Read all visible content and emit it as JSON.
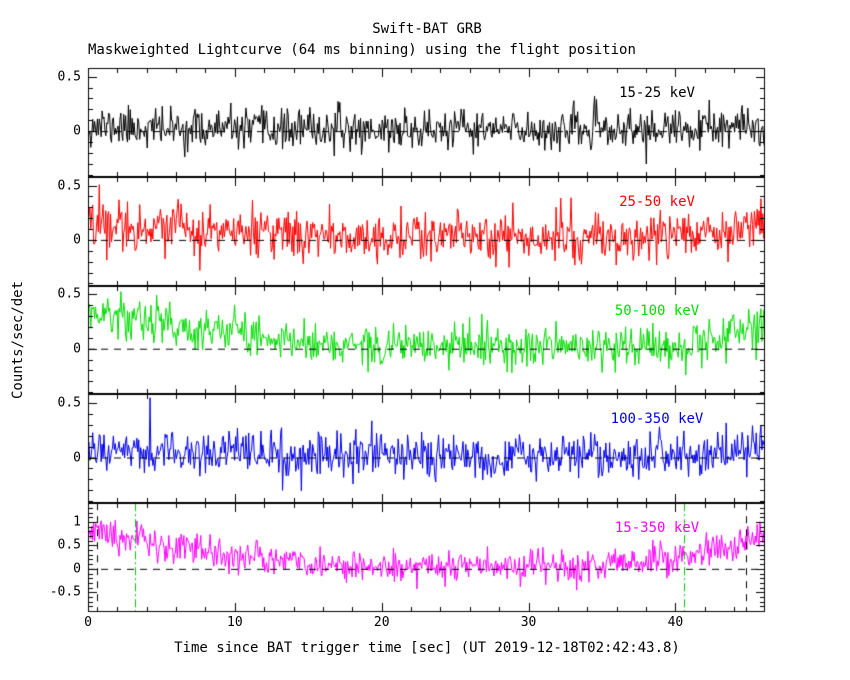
{
  "chart_data": {
    "type": "line",
    "title": "Swift-BAT GRB",
    "subtitle": "Maskweighted Lightcurve (64 ms binning) using the flight position",
    "xlabel": "Time since BAT trigger time [sec] (UT 2019-12-18T02:42:43.8)",
    "ylabel": "Counts/sec/det",
    "x_axis": {
      "min": 0,
      "max": 46.1,
      "major_ticks": [
        0,
        10,
        20,
        30,
        40
      ],
      "minor_step": 2,
      "bin_seconds": 0.064
    },
    "grid": false,
    "legend_position": "in-panel-right",
    "panels": [
      {
        "band": "15-25 keV",
        "color": "#000000",
        "ylim": [
          -0.42,
          0.58
        ],
        "labeled_ticks": [
          0,
          0.5
        ],
        "minor_step": 0.1,
        "noise_sigma": 0.09,
        "seed": 11,
        "trend": [
          [
            0,
            0.05
          ],
          [
            6,
            0.02
          ],
          [
            20,
            0.01
          ],
          [
            40,
            0.01
          ],
          [
            46.1,
            0.03
          ]
        ],
        "zero_line_dashed": true
      },
      {
        "band": "25-50 keV",
        "color": "#ff0000",
        "ylim": [
          -0.42,
          0.58
        ],
        "labeled_ticks": [
          0,
          0.5
        ],
        "minor_step": 0.1,
        "noise_sigma": 0.11,
        "seed": 22,
        "trend": [
          [
            0,
            0.17
          ],
          [
            3,
            0.14
          ],
          [
            10,
            0.06
          ],
          [
            18,
            0.03
          ],
          [
            38,
            0.02
          ],
          [
            43,
            0.1
          ],
          [
            46.1,
            0.17
          ]
        ],
        "zero_line_dashed": true
      },
      {
        "band": "50-100 keV",
        "color": "#00dd00",
        "ylim": [
          -0.42,
          0.58
        ],
        "labeled_ticks": [
          0,
          0.5
        ],
        "minor_step": 0.1,
        "noise_sigma": 0.095,
        "seed": 33,
        "trend": [
          [
            0,
            0.32
          ],
          [
            2.5,
            0.29
          ],
          [
            8,
            0.17
          ],
          [
            15,
            0.06
          ],
          [
            20,
            0.02
          ],
          [
            38,
            0.01
          ],
          [
            42,
            0.07
          ],
          [
            46.1,
            0.22
          ]
        ],
        "zero_line_dashed": true
      },
      {
        "band": "100-350 keV",
        "color": "#0000ee",
        "ylim": [
          -0.42,
          0.58
        ],
        "labeled_ticks": [
          0,
          0.5
        ],
        "minor_step": 0.1,
        "noise_sigma": 0.1,
        "seed": 44,
        "trend": [
          [
            0,
            0.07
          ],
          [
            6,
            0.04
          ],
          [
            15,
            0.01
          ],
          [
            40,
            0.01
          ],
          [
            44,
            0.05
          ],
          [
            46.1,
            0.1
          ]
        ],
        "spikes": [
          [
            4.2,
            0.55
          ]
        ],
        "zero_line_dashed": true
      },
      {
        "band": "15-350 keV",
        "color": "#ff00ff",
        "ylim": [
          -0.92,
          1.4
        ],
        "labeled_ticks": [
          -0.5,
          0,
          0.5,
          1
        ],
        "minor_step": 0.1,
        "noise_sigma": 0.17,
        "seed": 55,
        "trend": [
          [
            0,
            0.75
          ],
          [
            2,
            0.68
          ],
          [
            5,
            0.52
          ],
          [
            10,
            0.28
          ],
          [
            15,
            0.12
          ],
          [
            20,
            0.05
          ],
          [
            30,
            0.03
          ],
          [
            34,
            0.06
          ],
          [
            38,
            0.15
          ],
          [
            41,
            0.28
          ],
          [
            43.5,
            0.45
          ],
          [
            46.1,
            0.65
          ]
        ],
        "zero_line_dashed": true,
        "vlines": [
          {
            "t": 0.6,
            "style": "dashed",
            "color": "#000000"
          },
          {
            "t": 44.8,
            "style": "dashed",
            "color": "#000000"
          },
          {
            "t": 3.2,
            "style": "dashdot",
            "color": "#00cc00"
          },
          {
            "t": 40.6,
            "style": "dashdot",
            "color": "#00cc00"
          }
        ]
      }
    ]
  }
}
